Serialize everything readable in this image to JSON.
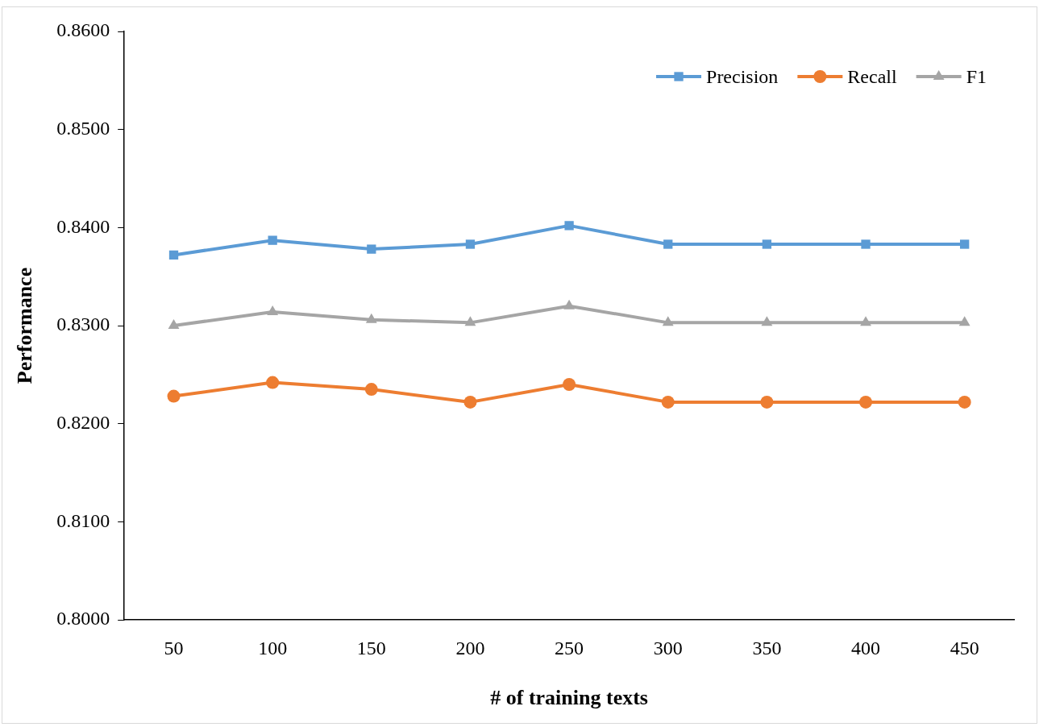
{
  "chart_data": {
    "type": "line",
    "xlabel": "# of training texts",
    "ylabel": "Performance",
    "categories": [
      "50",
      "100",
      "150",
      "200",
      "250",
      "300",
      "350",
      "400",
      "450"
    ],
    "ylim": [
      0.8,
      0.86
    ],
    "yticks": [
      {
        "value": 0.8,
        "label": "0.8000"
      },
      {
        "value": 0.81,
        "label": "0.8100"
      },
      {
        "value": 0.82,
        "label": "0.8200"
      },
      {
        "value": 0.83,
        "label": "0.8300"
      },
      {
        "value": 0.84,
        "label": "0.8400"
      },
      {
        "value": 0.85,
        "label": "0.8500"
      },
      {
        "value": 0.86,
        "label": "0.8600"
      }
    ],
    "grid": false,
    "legend": "top right",
    "line_style": "solid",
    "series": [
      {
        "name": "Precision",
        "color": "#5b9bd5",
        "marker": "square",
        "values": [
          0.8372,
          0.8387,
          0.8378,
          0.8383,
          0.8402,
          0.8383,
          0.8383,
          0.8383,
          0.8383
        ]
      },
      {
        "name": "Recall",
        "color": "#ed7d31",
        "marker": "circle",
        "values": [
          0.8228,
          0.8242,
          0.8235,
          0.8222,
          0.824,
          0.8222,
          0.8222,
          0.8222,
          0.8222
        ]
      },
      {
        "name": "F1",
        "color": "#a5a5a5",
        "marker": "triangle",
        "values": [
          0.83,
          0.8314,
          0.8306,
          0.8303,
          0.832,
          0.8303,
          0.8303,
          0.8303,
          0.8303
        ]
      }
    ]
  }
}
